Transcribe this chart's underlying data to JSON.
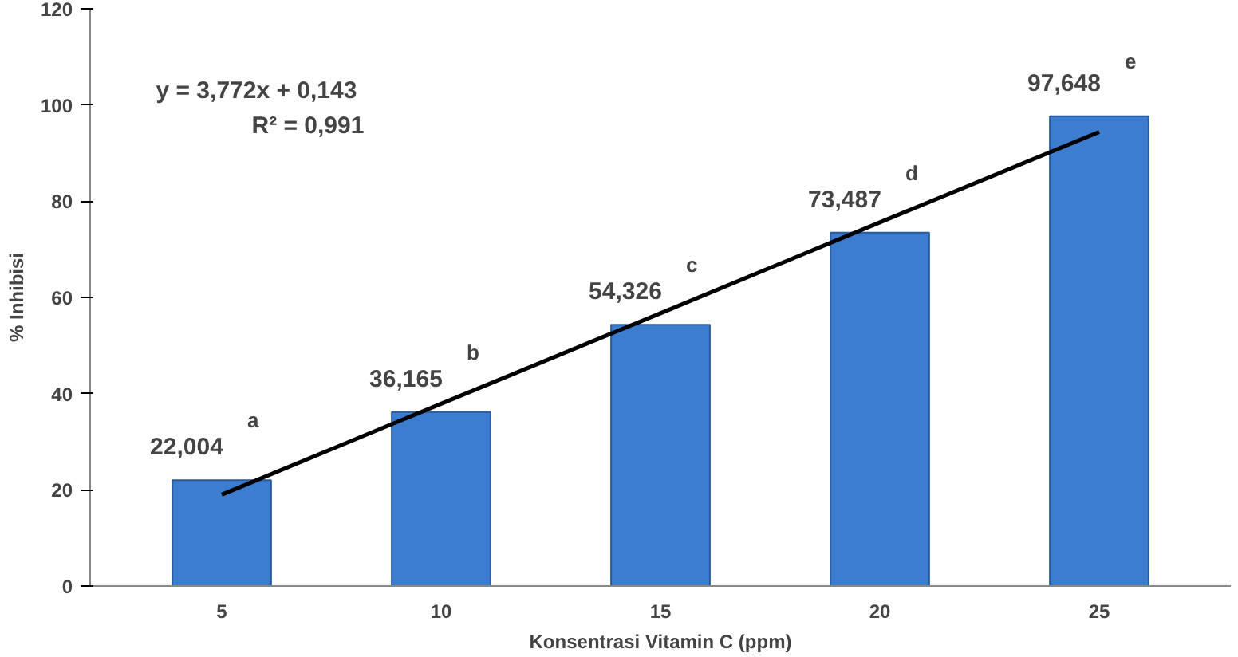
{
  "chart_data": {
    "type": "bar",
    "xlabel": "Konsentrasi Vitamin C (ppm)",
    "ylabel": "% Inhibisi",
    "categories": [
      "5",
      "10",
      "15",
      "20",
      "25"
    ],
    "series": [
      {
        "color": "#3c7dd0",
        "values": [
          22.004,
          36.165,
          54.326,
          73.487,
          97.648
        ],
        "value_labels": [
          "22,004",
          "36,165",
          "54,326",
          "73,487",
          "97,648"
        ]
      },
      {
        "type": "line",
        "color": "#000000",
        "values": [
          19.0,
          37.9,
          56.7,
          75.6,
          94.4
        ]
      }
    ],
    "ylim": [
      0,
      120
    ],
    "yticks": [
      0,
      20,
      40,
      60,
      80,
      100,
      120
    ],
    "grid": false,
    "marker": "none",
    "line_style": "solid",
    "annotations": [
      "y = 3,772x + 0,143",
      "R² = 0,991",
      {
        "text": "a",
        "x": "5",
        "y": 22.004
      },
      {
        "text": "b",
        "x": "10",
        "y": 36.165
      },
      {
        "text": "c",
        "x": "15",
        "y": 54.326
      },
      {
        "text": "d",
        "x": "20",
        "y": 73.487
      },
      {
        "text": "e",
        "x": "25",
        "y": 97.648
      }
    ]
  }
}
